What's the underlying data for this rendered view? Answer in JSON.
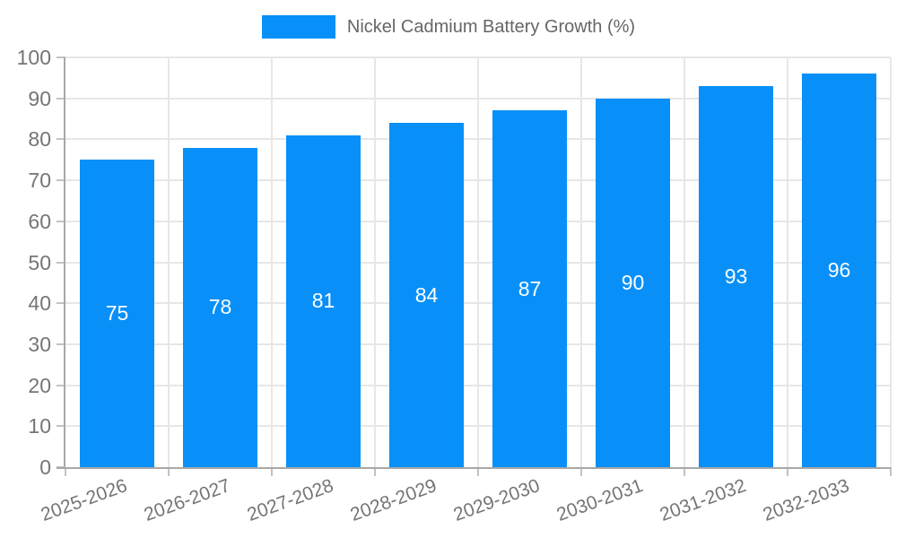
{
  "legend": {
    "label": "Nickel Cadmium Battery Growth (%)"
  },
  "colors": {
    "bar": "#0890f8",
    "bar_label": "#ffffff",
    "axis_text": "#757575",
    "legend_text": "#666666",
    "gridline": "#e7e7e7",
    "axis_line": "#a8a8a8",
    "tick": "#c2c2c2",
    "background": "#ffffff"
  },
  "chart_data": {
    "type": "bar",
    "title": "Nickel Cadmium Battery Growth (%)",
    "categories": [
      "2025-2026",
      "2026-2027",
      "2027-2028",
      "2028-2029",
      "2029-2030",
      "2030-2031",
      "2031-2032",
      "2032-2033"
    ],
    "values": [
      75,
      78,
      81,
      84,
      87,
      90,
      93,
      96
    ],
    "xlabel": "",
    "ylabel": "",
    "ylim": [
      0,
      100
    ],
    "yticks": [
      0,
      10,
      20,
      30,
      40,
      50,
      60,
      70,
      80,
      90,
      100
    ],
    "grid": true,
    "grid_vertical": true,
    "legend_position": "top-center",
    "bar_labels_inside": true,
    "xlabel_rotation_deg": -20
  }
}
